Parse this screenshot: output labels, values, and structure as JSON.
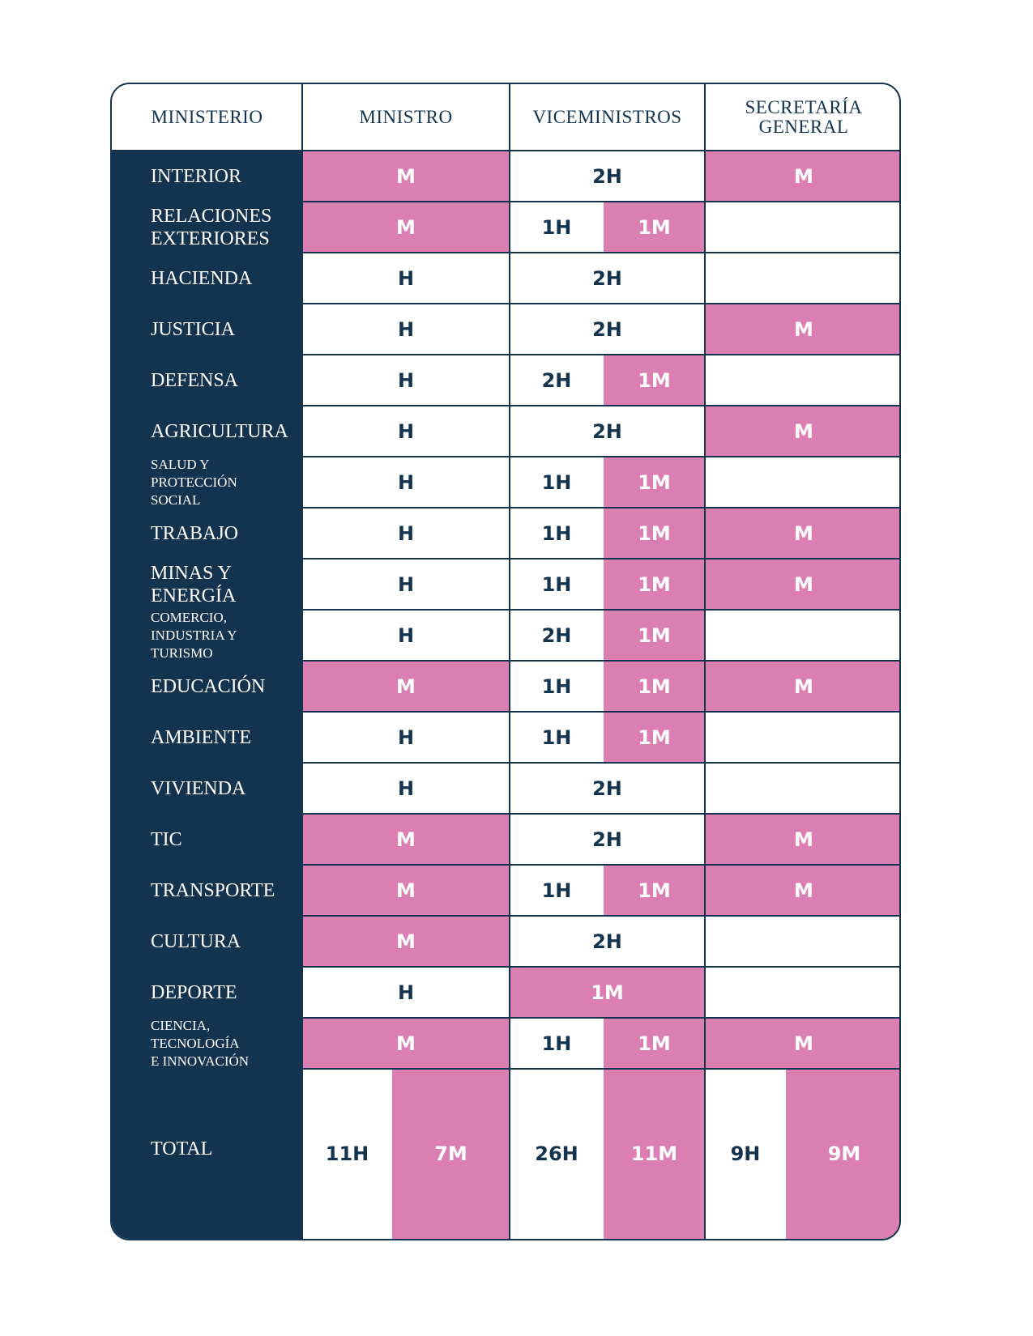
{
  "colors": {
    "navy": "#14334f",
    "pink": "#db7fb3",
    "white": "#ffffff"
  },
  "headers": [
    "MINISTERIO",
    "MINISTRO",
    "VICEMINISTROS",
    "SECRETARÍA\nGENERAL"
  ],
  "chart_data": {
    "type": "table",
    "columns": [
      "MINISTERIO",
      "MINISTRO",
      "VICEMINISTROS",
      "SECRETARÍA GENERAL"
    ],
    "rows": [
      {
        "ministerio": "INTERIOR",
        "ministro": "M",
        "vice": [
          "2H"
        ],
        "secretaria": "M"
      },
      {
        "ministerio": "RELACIONES\nEXTERIORES",
        "ministro": "M",
        "vice": [
          "1H",
          "1M"
        ],
        "secretaria": ""
      },
      {
        "ministerio": "HACIENDA",
        "ministro": "H",
        "vice": [
          "2H"
        ],
        "secretaria": ""
      },
      {
        "ministerio": "JUSTICIA",
        "ministro": "H",
        "vice": [
          "2H"
        ],
        "secretaria": "M"
      },
      {
        "ministerio": "DEFENSA",
        "ministro": "H",
        "vice": [
          "2H",
          "1M"
        ],
        "secretaria": ""
      },
      {
        "ministerio": "AGRICULTURA",
        "ministro": "H",
        "vice": [
          "2H"
        ],
        "secretaria": "M"
      },
      {
        "ministerio": "SALUD Y\nPROTECCIÓN\nSOCIAL",
        "ministro": "H",
        "vice": [
          "1H",
          "1M"
        ],
        "secretaria": ""
      },
      {
        "ministerio": "TRABAJO",
        "ministro": "H",
        "vice": [
          "1H",
          "1M"
        ],
        "secretaria": "M"
      },
      {
        "ministerio": "MINAS Y\nENERGÍA",
        "ministro": "H",
        "vice": [
          "1H",
          "1M"
        ],
        "secretaria": "M"
      },
      {
        "ministerio": "COMERCIO,\nINDUSTRIA Y\nTURISMO",
        "ministro": "H",
        "vice": [
          "2H",
          "1M"
        ],
        "secretaria": ""
      },
      {
        "ministerio": "EDUCACIÓN",
        "ministro": "M",
        "vice": [
          "1H",
          "1M"
        ],
        "secretaria": "M"
      },
      {
        "ministerio": "AMBIENTE",
        "ministro": "H",
        "vice": [
          "1H",
          "1M"
        ],
        "secretaria": ""
      },
      {
        "ministerio": "VIVIENDA",
        "ministro": "H",
        "vice": [
          "2H"
        ],
        "secretaria": ""
      },
      {
        "ministerio": "TIC",
        "ministro": "M",
        "vice": [
          "2H"
        ],
        "secretaria": "M"
      },
      {
        "ministerio": "TRANSPORTE",
        "ministro": "M",
        "vice": [
          "1H",
          "1M"
        ],
        "secretaria": "M"
      },
      {
        "ministerio": "CULTURA",
        "ministro": "M",
        "vice": [
          "2H"
        ],
        "secretaria": ""
      },
      {
        "ministerio": "DEPORTE",
        "ministro": "H",
        "vice": [
          "1M"
        ],
        "secretaria": ""
      },
      {
        "ministerio": "CIENCIA,\nTECNOLOGÍA\nE INNOVACIÓN",
        "ministro": "M",
        "vice": [
          "1H",
          "1M"
        ],
        "secretaria": "M"
      }
    ],
    "total": {
      "label": "TOTAL",
      "ministro": [
        "11H",
        "7M"
      ],
      "vice": [
        "26H",
        "11M"
      ],
      "secretaria": [
        "9H",
        "9M"
      ]
    }
  }
}
